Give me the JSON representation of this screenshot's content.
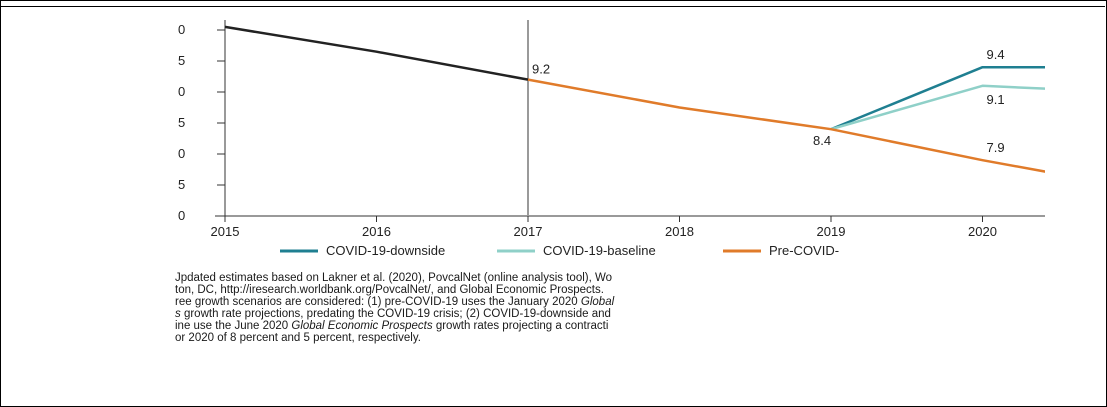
{
  "chart_data": {
    "type": "line",
    "x": [
      "2015",
      "2016",
      "2017",
      "2018",
      "2019",
      "2020"
    ],
    "y_tick_labels": [
      "0",
      "5",
      "0",
      "5",
      "0",
      "5",
      "0"
    ],
    "ylim": [
      7.0,
      10.0
    ],
    "grid": false,
    "projection_marker_at": "2017",
    "series": [
      {
        "name": "",
        "color": "#222222",
        "points": [
          [
            2015,
            10.05
          ],
          [
            2016,
            9.65
          ],
          [
            2017,
            9.2
          ]
        ]
      },
      {
        "name": "COVID-19-downside",
        "color": "#1f7f91",
        "points": [
          [
            2019,
            8.4
          ],
          [
            2020,
            9.4
          ],
          [
            2020.45,
            9.4
          ]
        ]
      },
      {
        "name": "COVID-19-baseline",
        "color": "#8fd0c8",
        "points": [
          [
            2019,
            8.4
          ],
          [
            2020,
            9.1
          ],
          [
            2020.45,
            9.05
          ]
        ]
      },
      {
        "name": "Pre-COVID-",
        "color": "#e07b2a",
        "points": [
          [
            2017,
            9.2
          ],
          [
            2018,
            8.75
          ],
          [
            2019,
            8.4
          ],
          [
            2020,
            7.9
          ],
          [
            2020.45,
            7.7
          ]
        ]
      }
    ],
    "data_labels": [
      {
        "text": "9.2",
        "x": 2017,
        "y": 9.2,
        "anchor": "right-above"
      },
      {
        "text": "8.4",
        "x": 2019,
        "y": 8.4,
        "anchor": "below-left"
      },
      {
        "text": "9.4",
        "x": 2020,
        "y": 9.4,
        "anchor": "above-right"
      },
      {
        "text": "9.1",
        "x": 2020,
        "y": 9.1,
        "anchor": "below-right"
      },
      {
        "text": "7.9",
        "x": 2020,
        "y": 7.9,
        "anchor": "above-right"
      }
    ],
    "legend": {
      "placement": "bottom",
      "entries": [
        {
          "label": "COVID-19-downside",
          "color": "#1f7f91"
        },
        {
          "label": "COVID-19-baseline",
          "color": "#8fd0c8"
        },
        {
          "label": "Pre-COVID-",
          "color": "#e07b2a"
        }
      ]
    }
  },
  "source_note": [
    [
      {
        "text": "Jpdated estimates based on Lakner et al. (2020), PovcalNet (online analysis tool), Wo"
      }
    ],
    [
      {
        "text": "ton, DC, http://iresearch.worldbank.org/PovcalNet/, and Global Economic Prospects."
      }
    ],
    [
      {
        "text": "ree growth scenarios are considered: (1) pre-COVID-19 uses the January 2020 "
      },
      {
        "text": "Global",
        "italic": true
      }
    ],
    [
      {
        "text": "s",
        "italic": true
      },
      {
        "text": " growth rate projections, predating the COVID-19 crisis; (2) COVID-19-downside and"
      }
    ],
    [
      {
        "text": "ine use the June 2020 "
      },
      {
        "text": "Global Economic Prospects",
        "italic": true
      },
      {
        "text": " growth rates projecting a contracti"
      }
    ],
    [
      {
        "text": "or 2020 of 8 percent and 5 percent, respectively."
      }
    ]
  ]
}
